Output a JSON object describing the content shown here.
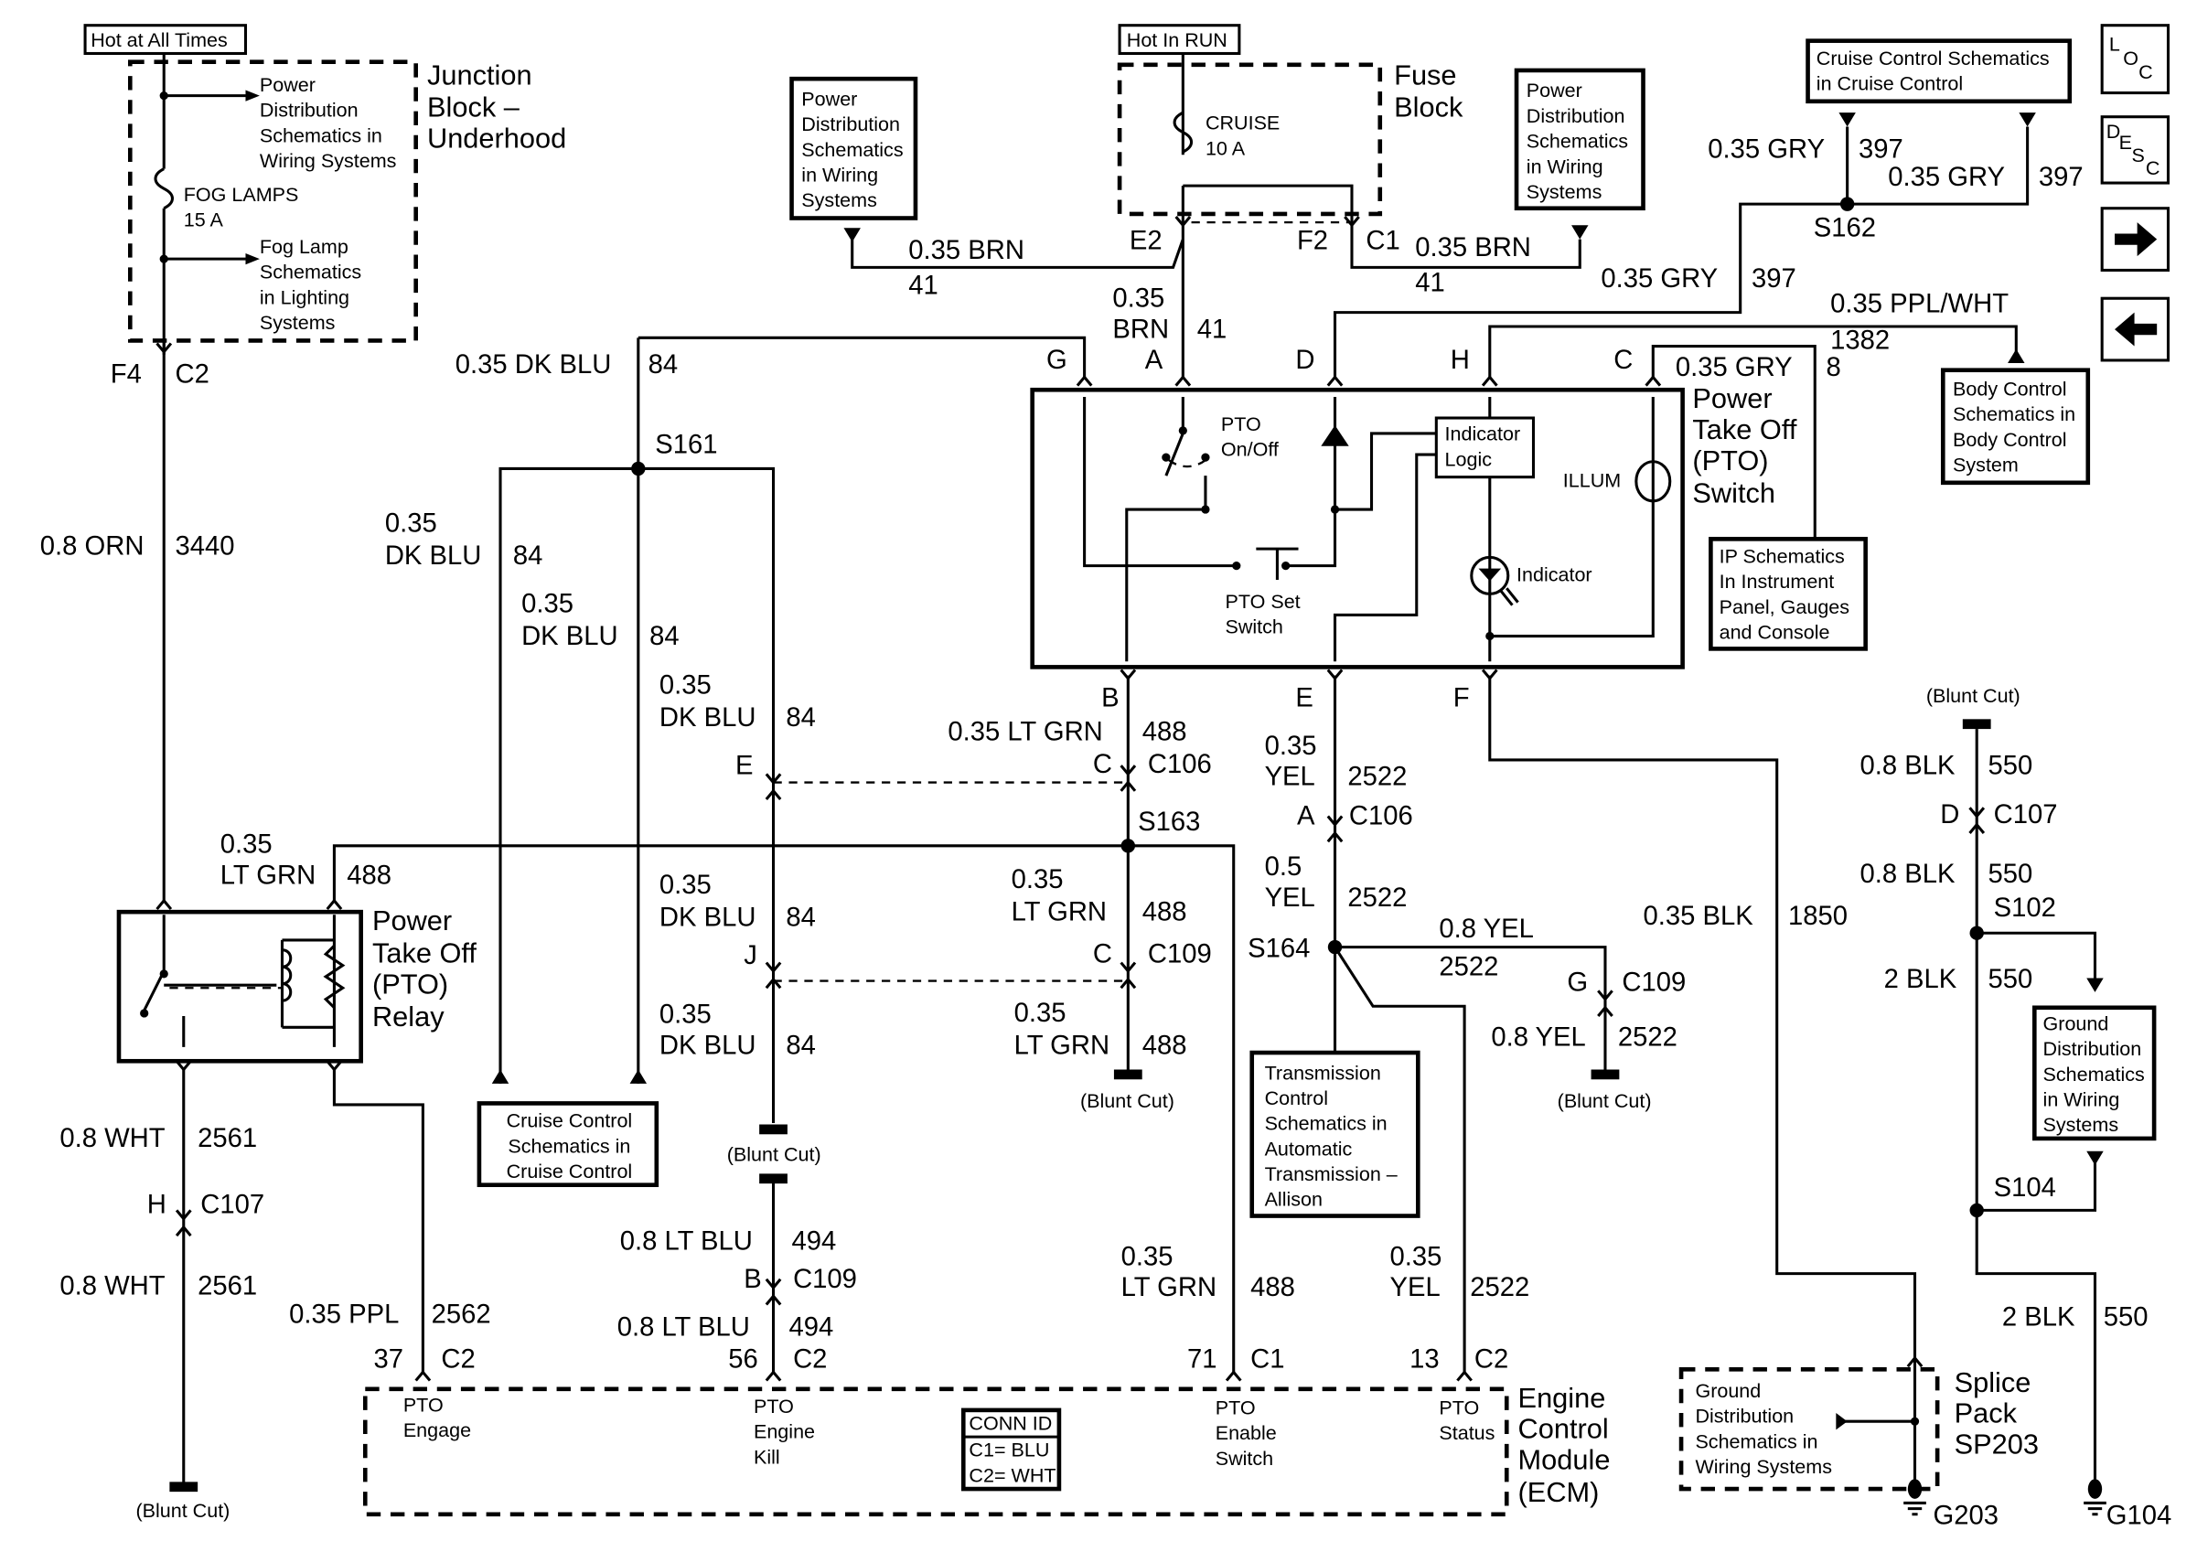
{
  "header_boxes": {
    "hot_at_all_times": "Hot at All Times",
    "hot_in_run": "Hot In RUN"
  },
  "nav_icons": {
    "loc": [
      "L",
      "O",
      "C"
    ],
    "desc": [
      "D",
      "E",
      "S",
      "C"
    ],
    "next": "arrow-right-icon",
    "prev": "arrow-left-icon"
  },
  "junction_block": {
    "title": [
      "Junction",
      "Block –",
      "Underhood"
    ],
    "fuse": [
      "FOG LAMPS",
      "15 A"
    ],
    "power_ref": [
      "Power",
      "Distribution",
      "Schematics in",
      "Wiring Systems"
    ],
    "fog_ref": [
      "Fog Lamp",
      "Schematics",
      "in Lighting",
      "Systems"
    ],
    "conn": [
      "F4",
      "C2"
    ]
  },
  "fuse_block": {
    "title": [
      "Fuse",
      "Block"
    ],
    "fuse": [
      "CRUISE",
      "10 A"
    ],
    "conn": [
      "E2",
      "F2",
      "C1"
    ]
  },
  "refs": {
    "power_dist_left": [
      "Power",
      "Distribution",
      "Schematics",
      "in Wiring",
      "Systems"
    ],
    "power_dist_right": [
      "Power",
      "Distribution",
      "Schematics",
      "in Wiring",
      "Systems"
    ],
    "cruise_top": [
      "Cruise Control Schematics",
      "in Cruise Control"
    ],
    "body_control": [
      "Body Control",
      "Schematics in",
      "Body Control",
      "System"
    ],
    "ip": [
      "IP Schematics",
      "In Instrument",
      "Panel, Gauges",
      "and Console"
    ],
    "cruise_bottom": [
      "Cruise Control",
      "Schematics in",
      "Cruise Control"
    ],
    "transmission": [
      "Transmission",
      "Control",
      "Schematics in",
      "Automatic",
      "Transmission –",
      "Allison"
    ],
    "ground_right": [
      "Ground",
      "Distribution",
      "Schematics",
      "in Wiring",
      "Systems"
    ],
    "ground_splice": [
      "Ground",
      "Distribution",
      "Schematics in",
      "Wiring Systems"
    ]
  },
  "wires": {
    "orn": [
      "0.8 ORN",
      "3440"
    ],
    "brn_left": [
      "0.35 BRN",
      "41"
    ],
    "brn_mid": [
      "0.35",
      "BRN",
      "41"
    ],
    "brn_right": [
      "0.35 BRN",
      "41"
    ],
    "gry_a": [
      "0.35 GRY",
      "397"
    ],
    "gry_b": [
      "0.35 GRY",
      "397"
    ],
    "gry_c": [
      "0.35 GRY",
      "397"
    ],
    "ppl_wht": [
      "0.35 PPL/WHT",
      "1382"
    ],
    "gry_8": [
      "0.35 GRY",
      "8"
    ],
    "dkblu_top": [
      "0.35 DK BLU",
      "84"
    ],
    "dkblu_1": [
      "0.35",
      "DK BLU",
      "84"
    ],
    "dkblu_2": [
      "0.35",
      "DK BLU",
      "84"
    ],
    "dkblu_3": [
      "0.35",
      "DK BLU",
      "84"
    ],
    "dkblu_4": [
      "0.35",
      "DK BLU",
      "84"
    ],
    "dkblu_5": [
      "0.35",
      "DK BLU",
      "84"
    ],
    "ltgrn_relay": [
      "0.35",
      "LT GRN",
      "488"
    ],
    "ltgrn_b": [
      "0.35 LT GRN",
      "488"
    ],
    "ltgrn_c109": [
      "0.35",
      "LT GRN",
      "488"
    ],
    "ltgrn_cut": [
      "0.35",
      "LT GRN",
      "488"
    ],
    "ltgrn_ecm": [
      "0.35",
      "LT GRN",
      "488"
    ],
    "yel_1": [
      "0.35",
      "YEL",
      "2522"
    ],
    "yel_2": [
      "0.5",
      "YEL",
      "2522"
    ],
    "yel_3": [
      "0.8 YEL",
      "2522"
    ],
    "yel_4": [
      "0.8 YEL",
      "2522"
    ],
    "yel_ecm": [
      "0.35",
      "YEL",
      "2522"
    ],
    "blk_1850": [
      "0.35 BLK",
      "1850"
    ],
    "blk_1": [
      "0.8 BLK",
      "550"
    ],
    "blk_2": [
      "0.8 BLK",
      "550"
    ],
    "blk_3": [
      "2 BLK",
      "550"
    ],
    "blk_4": [
      "2 BLK",
      "550"
    ],
    "wht_1": [
      "0.8 WHT",
      "2561"
    ],
    "wht_2": [
      "0.8 WHT",
      "2561"
    ],
    "ppl": [
      "0.35 PPL",
      "2562"
    ],
    "ltblu_1": [
      "0.8 LT BLU",
      "494"
    ],
    "ltblu_2": [
      "0.8 LT BLU",
      "494"
    ]
  },
  "connectors": {
    "switch_pins": [
      "G",
      "A",
      "D",
      "H",
      "C",
      "B",
      "E",
      "F"
    ],
    "c106_e": [
      "E"
    ],
    "c106_c": [
      "C",
      "C106"
    ],
    "c106_a": [
      "A",
      "C106"
    ],
    "c109_j": [
      "J"
    ],
    "c109_c": [
      "C",
      "C109"
    ],
    "c109_g": [
      "G",
      "C109"
    ],
    "c109_b": [
      "B",
      "C109"
    ],
    "c107_h": [
      "H",
      "C107"
    ],
    "c107_d": [
      "D",
      "C107"
    ],
    "ecm_37": [
      "37",
      "C2"
    ],
    "ecm_56": [
      "56",
      "C2"
    ],
    "ecm_71": [
      "71",
      "C1"
    ],
    "ecm_13": [
      "13",
      "C2"
    ]
  },
  "splices": {
    "s161": "S161",
    "s162": "S162",
    "s163": "S163",
    "s164": "S164",
    "s102": "S102",
    "s104": "S104"
  },
  "blunt_cut": "(Blunt Cut)",
  "pto_switch": {
    "title": [
      "Power",
      "Take Off",
      "(PTO)",
      "Switch"
    ],
    "onoff": [
      "PTO",
      "On/Off"
    ],
    "logic": [
      "Indicator",
      "Logic"
    ],
    "illum": "ILLUM",
    "indicator": "Indicator",
    "set": [
      "PTO Set",
      "Switch"
    ]
  },
  "pto_relay": {
    "title": [
      "Power",
      "Take Off",
      "(PTO)",
      "Relay"
    ]
  },
  "ecm": {
    "title": [
      "Engine",
      "Control",
      "Module",
      "(ECM)"
    ],
    "engage": [
      "PTO",
      "Engage"
    ],
    "kill": [
      "PTO",
      "Engine",
      "Kill"
    ],
    "enable": [
      "PTO",
      "Enable",
      "Switch"
    ],
    "status": [
      "PTO",
      "Status"
    ],
    "conn_id": [
      "CONN ID",
      "C1= BLU",
      "C2= WHT"
    ]
  },
  "splice_pack": {
    "title": [
      "Splice",
      "Pack",
      "SP203"
    ]
  },
  "grounds": {
    "g203": "G203",
    "g104": "G104"
  }
}
